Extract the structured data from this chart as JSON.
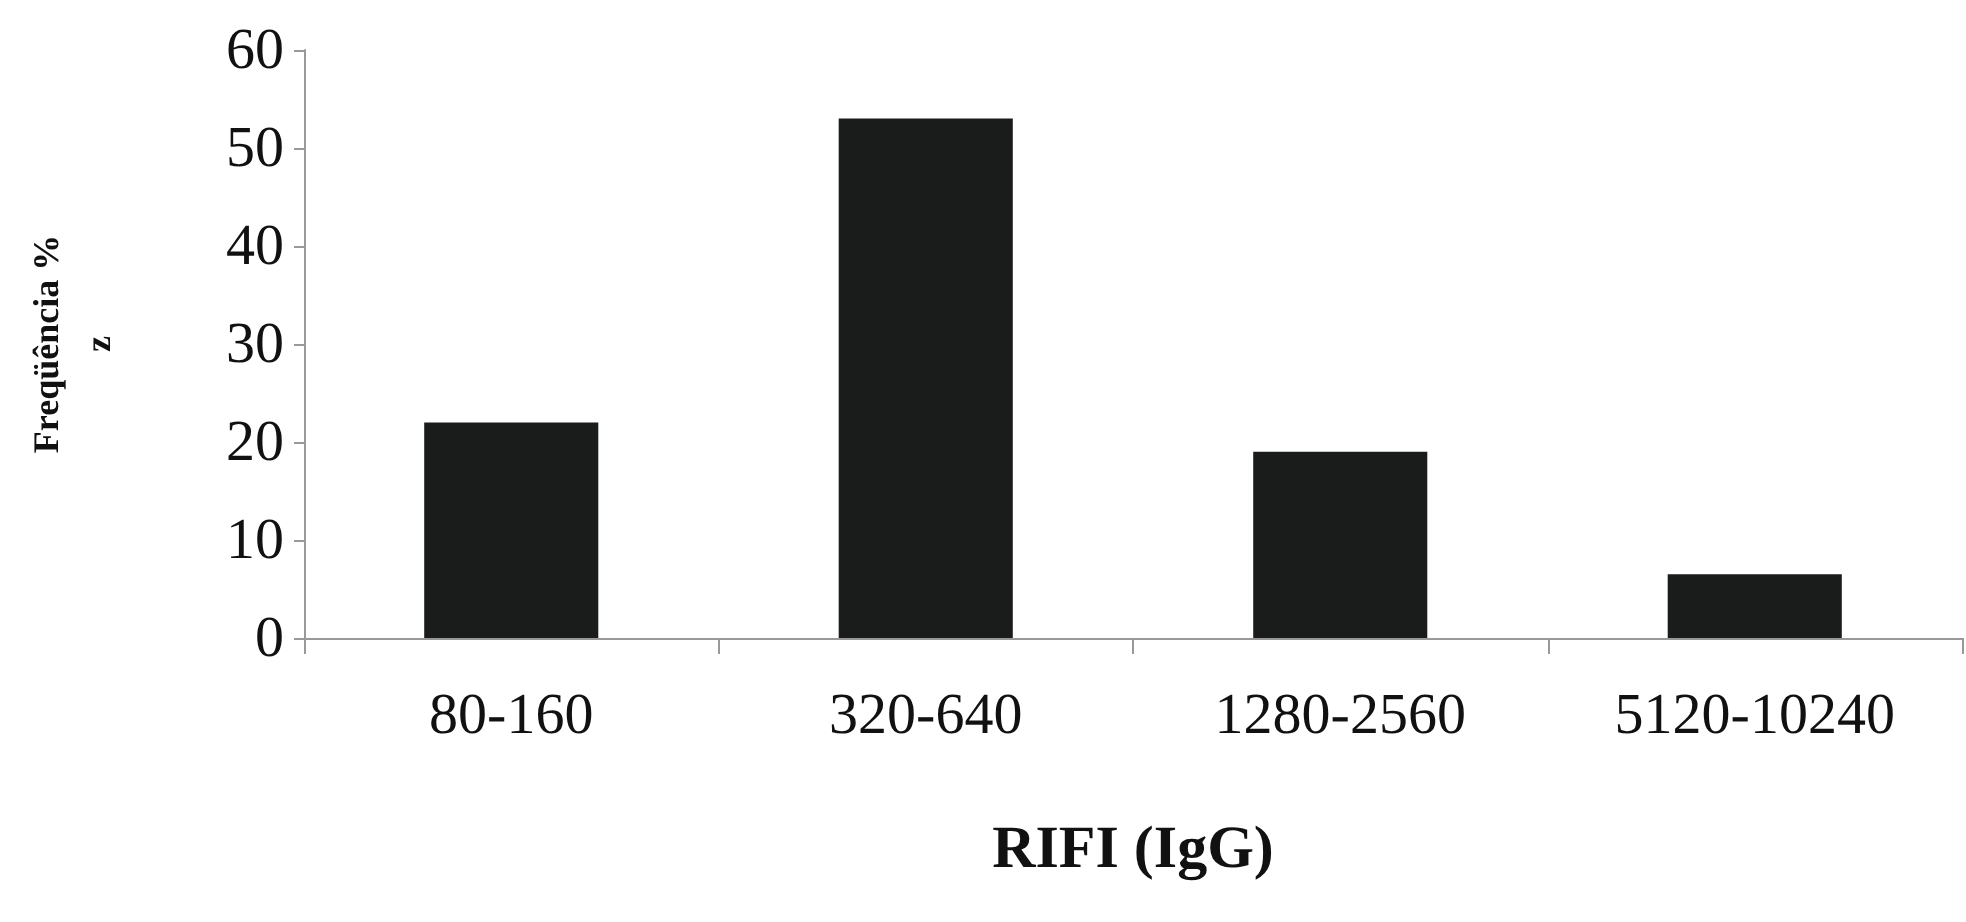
{
  "chart_data": {
    "type": "bar",
    "xlabel": "RIFI (IgG)",
    "ylabel": "Freqüência %\nz",
    "categories": [
      "80-160",
      "320-640",
      "1280-2560",
      "5120-10240"
    ],
    "values": [
      22,
      53,
      19,
      6.5
    ],
    "color": "#1a1c1c",
    "ylim": [
      0,
      60
    ],
    "yticks": [
      0,
      10,
      20,
      30,
      40,
      50,
      60
    ],
    "grid": false
  }
}
